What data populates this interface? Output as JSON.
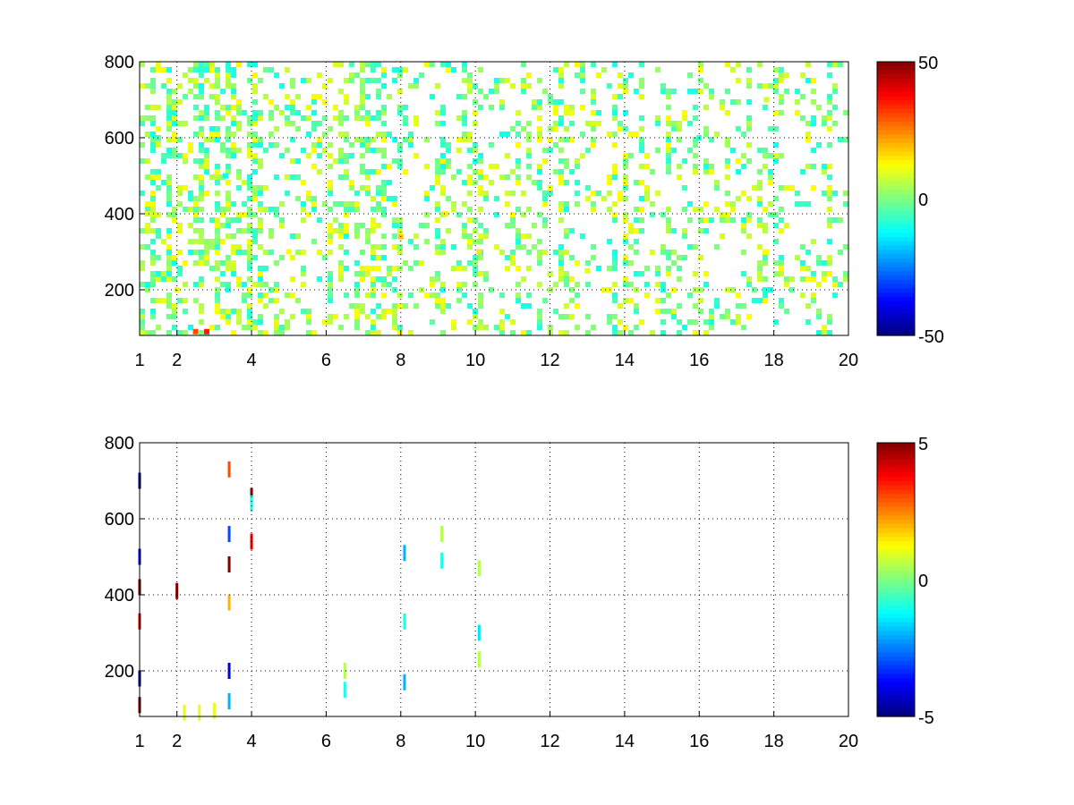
{
  "chart_data": [
    {
      "type": "heatmap",
      "title": "",
      "xlabel": "",
      "ylabel": "",
      "x_ticks": [
        1,
        2,
        4,
        6,
        8,
        10,
        12,
        14,
        16,
        18,
        20
      ],
      "y_ticks": [
        200,
        400,
        600,
        800
      ],
      "xlim": [
        1,
        20
      ],
      "ylim": [
        80,
        800
      ],
      "grid": true,
      "colormap": "jet",
      "colorbar": {
        "min": -50,
        "max": 50,
        "ticks": [
          "50",
          "0",
          "-50"
        ]
      },
      "description_of_values": "dense scattered cells mostly in range -15..+15 (cyan-green-yellow); denser columns near x=1-4; a few orange/red values near x=2-3, y<100; blank cells are NaN",
      "cells": [
        {
          "x": 1.2,
          "y": 400,
          "v": 8
        },
        {
          "x": 1.5,
          "y": 600,
          "v": -6
        },
        {
          "x": 2.0,
          "y": 200,
          "v": 10
        },
        {
          "x": 2.5,
          "y": 90,
          "v": 30
        },
        {
          "x": 2.8,
          "y": 90,
          "v": 35
        },
        {
          "x": 3.3,
          "y": 500,
          "v": -12
        },
        {
          "x": 5.0,
          "y": 300,
          "v": 12
        },
        {
          "x": 8.0,
          "y": 340,
          "v": 18
        },
        {
          "x": 9.2,
          "y": 400,
          "v": 14
        },
        {
          "x": 10.1,
          "y": 300,
          "v": 15
        },
        {
          "x": 13.0,
          "y": 250,
          "v": 10
        },
        {
          "x": 16.0,
          "y": 600,
          "v": -8
        },
        {
          "x": 17.8,
          "y": 700,
          "v": 8
        },
        {
          "x": 17.8,
          "y": 300,
          "v": 12
        }
      ]
    },
    {
      "type": "heatmap",
      "title": "",
      "xlabel": "",
      "ylabel": "",
      "x_ticks": [
        1,
        2,
        4,
        6,
        8,
        10,
        12,
        14,
        16,
        18,
        20
      ],
      "y_ticks": [
        200,
        400,
        600,
        800
      ],
      "xlim": [
        1,
        20
      ],
      "ylim": [
        80,
        800
      ],
      "grid": true,
      "colormap": "jet",
      "colorbar": {
        "min": -5,
        "max": 5,
        "ticks": [
          "5",
          "0",
          "-5"
        ]
      },
      "cells": [
        {
          "x": 1.0,
          "y": 700,
          "v": -5
        },
        {
          "x": 1.0,
          "y": 500,
          "v": -4
        },
        {
          "x": 1.0,
          "y": 420,
          "v": 5
        },
        {
          "x": 1.0,
          "y": 330,
          "v": 4
        },
        {
          "x": 1.0,
          "y": 180,
          "v": -5
        },
        {
          "x": 1.0,
          "y": 110,
          "v": 5
        },
        {
          "x": 2.0,
          "y": 410,
          "v": 5
        },
        {
          "x": 2.2,
          "y": 90,
          "v": 1
        },
        {
          "x": 2.6,
          "y": 90,
          "v": 1
        },
        {
          "x": 3.0,
          "y": 95,
          "v": 1
        },
        {
          "x": 3.4,
          "y": 730,
          "v": 3
        },
        {
          "x": 3.4,
          "y": 560,
          "v": -3
        },
        {
          "x": 3.4,
          "y": 480,
          "v": 5
        },
        {
          "x": 3.4,
          "y": 380,
          "v": 2
        },
        {
          "x": 3.4,
          "y": 200,
          "v": -4
        },
        {
          "x": 3.4,
          "y": 120,
          "v": -2
        },
        {
          "x": 4.0,
          "y": 660,
          "v": 5
        },
        {
          "x": 4.0,
          "y": 640,
          "v": -1
        },
        {
          "x": 4.0,
          "y": 540,
          "v": 4
        },
        {
          "x": 6.5,
          "y": 200,
          "v": 0.5
        },
        {
          "x": 6.5,
          "y": 150,
          "v": -1
        },
        {
          "x": 8.1,
          "y": 510,
          "v": -2
        },
        {
          "x": 8.1,
          "y": 330,
          "v": -1
        },
        {
          "x": 8.1,
          "y": 170,
          "v": -2
        },
        {
          "x": 9.1,
          "y": 560,
          "v": 0.5
        },
        {
          "x": 9.1,
          "y": 490,
          "v": -1
        },
        {
          "x": 10.1,
          "y": 470,
          "v": 0.5
        },
        {
          "x": 10.1,
          "y": 300,
          "v": -1.5
        },
        {
          "x": 10.1,
          "y": 230,
          "v": 0.5
        }
      ]
    }
  ]
}
